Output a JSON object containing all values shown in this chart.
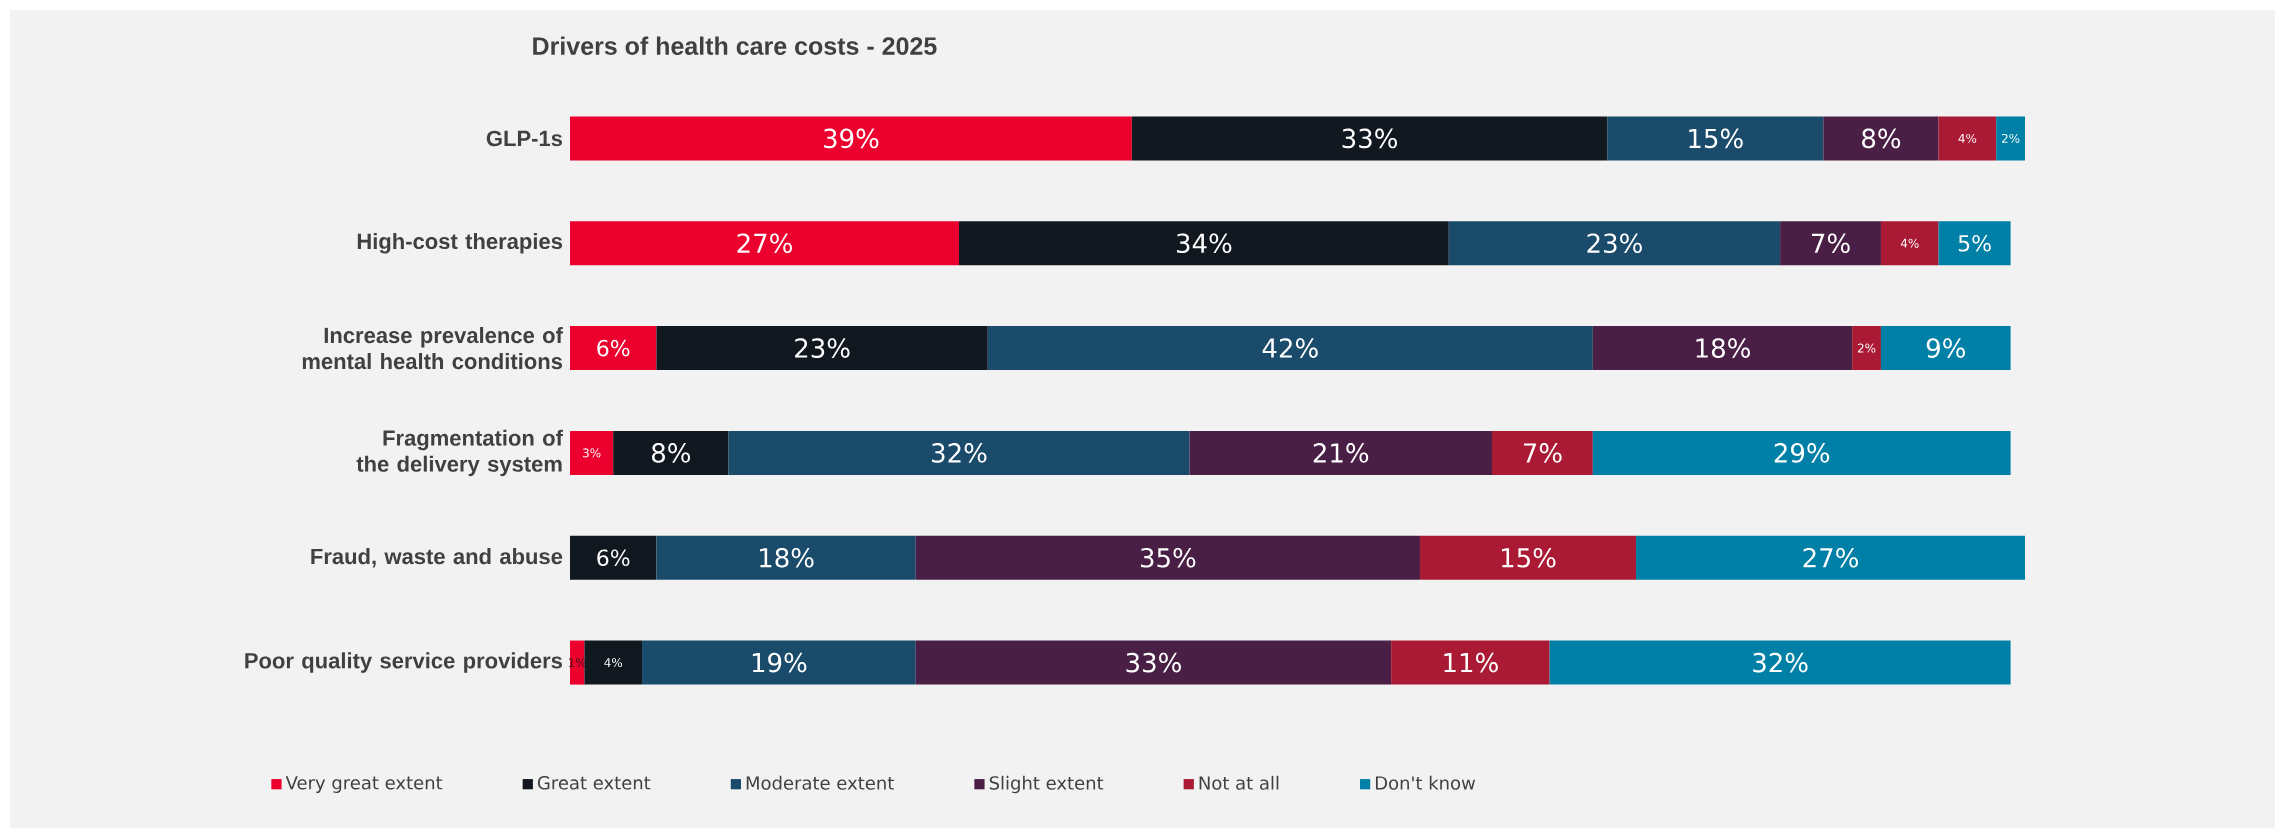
{
  "chart_data": {
    "type": "bar",
    "orientation": "horizontal",
    "stacked": true,
    "title": "Drivers of health care costs - 2025",
    "categories": [
      "GLP-1s",
      "High-cost therapies",
      "Increase prevalence of mental health conditions",
      "Fragmentation of the delivery system",
      "Fraud, waste and abuse",
      "Poor quality service providers"
    ],
    "series": [
      {
        "name": "Very great extent",
        "color": "#eb002e",
        "values": [
          39,
          27,
          6,
          3,
          null,
          1
        ],
        "value_labels": [
          "39%",
          "27%",
          "6%",
          "3%",
          null,
          "1%"
        ]
      },
      {
        "name": "Great extent",
        "color": "#111820",
        "values": [
          33,
          34,
          23,
          8,
          6,
          4
        ],
        "value_labels": [
          "33%",
          "34%",
          "23%",
          "8%",
          "6%",
          "4%"
        ]
      },
      {
        "name": "Moderate extent",
        "color": "#1a4b6b",
        "values": [
          15,
          23,
          42,
          32,
          18,
          19
        ],
        "value_labels": [
          "15%",
          "23%",
          "42%",
          "32%",
          "18%",
          "19%"
        ]
      },
      {
        "name": "Slight extent",
        "color": "#4a1f46",
        "values": [
          8,
          7,
          18,
          21,
          35,
          33
        ],
        "value_labels": [
          "8%",
          "7%",
          "18%",
          "21%",
          "35%",
          "33%"
        ]
      },
      {
        "name": "Not at all",
        "color": "#ab1a35",
        "values": [
          4,
          4,
          2,
          7,
          15,
          11
        ],
        "value_labels": [
          "4%",
          "4%",
          "2%",
          "7%",
          "15%",
          "11%"
        ]
      },
      {
        "name": "Don't know",
        "color": "#0080a6",
        "values": [
          2,
          5,
          9,
          29,
          27,
          32
        ],
        "value_labels": [
          "2%",
          "5%",
          "9%",
          "29%",
          "27%",
          "32%"
        ]
      }
    ],
    "xlim": [
      0,
      101
    ],
    "tick_labels": "y",
    "legend": "bottom"
  }
}
